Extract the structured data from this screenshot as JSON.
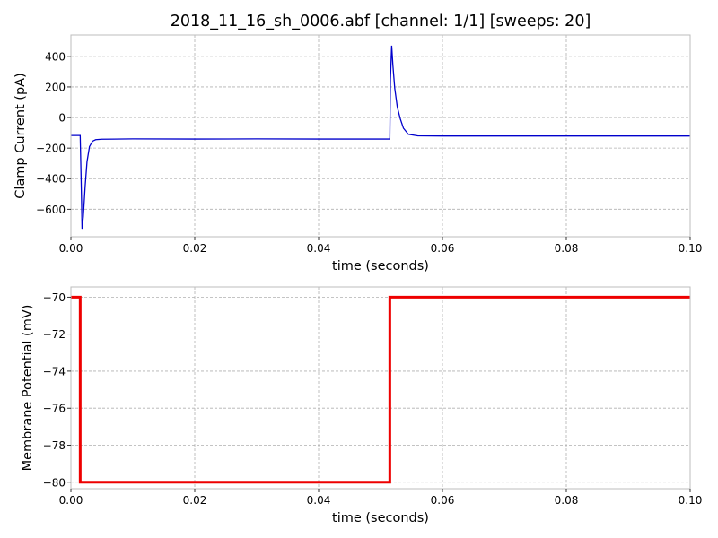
{
  "title": "2018_11_16_sh_0006.abf [channel: 1/1] [sweeps: 20]",
  "chart_data": [
    {
      "type": "line",
      "xlabel": "time (seconds)",
      "ylabel": "Clamp Current (pA)",
      "xlim": [
        0,
        0.1
      ],
      "ylim": [
        -780,
        540
      ],
      "xticks": [
        0,
        0.02,
        0.04,
        0.06,
        0.08,
        0.1
      ],
      "xtick_labels": [
        "0.00",
        "0.02",
        "0.04",
        "0.06",
        "0.08",
        "0.10"
      ],
      "yticks": [
        -600,
        -400,
        -200,
        0,
        200,
        400
      ],
      "ytick_labels": [
        "−600",
        "−400",
        "−200",
        "0",
        "200",
        "400"
      ],
      "grid": true,
      "color": "#0000cc",
      "series": [
        {
          "x": [
            0,
            0.0015,
            0.0017,
            0.0018,
            0.002,
            0.0023,
            0.0026,
            0.003,
            0.0035,
            0.004,
            0.005,
            0.01,
            0.02,
            0.03,
            0.04,
            0.0515,
            0.0516,
            0.0518,
            0.052,
            0.0523,
            0.0527,
            0.0532,
            0.0537,
            0.0545,
            0.056,
            0.06,
            0.08,
            0.1
          ],
          "y": [
            -118,
            -118,
            -500,
            -728,
            -650,
            -450,
            -290,
            -190,
            -155,
            -145,
            -142,
            -140,
            -141,
            -140,
            -141,
            -141,
            250,
            470,
            340,
            190,
            70,
            -10,
            -70,
            -110,
            -120,
            -121,
            -121,
            -121
          ]
        }
      ]
    },
    {
      "type": "line",
      "xlabel": "time (seconds)",
      "ylabel": "Membrane Potential (mV)",
      "xlim": [
        0,
        0.1
      ],
      "ylim": [
        -80.35,
        -69.45
      ],
      "xticks": [
        0,
        0.02,
        0.04,
        0.06,
        0.08,
        0.1
      ],
      "xtick_labels": [
        "0.00",
        "0.02",
        "0.04",
        "0.06",
        "0.08",
        "0.10"
      ],
      "yticks": [
        -80,
        -78,
        -76,
        -74,
        -72,
        -70
      ],
      "ytick_labels": [
        "−80",
        "−78",
        "−76",
        "−74",
        "−72",
        "−70"
      ],
      "grid": true,
      "color": "#ee0000",
      "series": [
        {
          "x": [
            0,
            0.0015,
            0.0015,
            0.0515,
            0.0515,
            0.1
          ],
          "y": [
            -70,
            -70,
            -80,
            -80,
            -70,
            -70
          ]
        }
      ]
    }
  ]
}
